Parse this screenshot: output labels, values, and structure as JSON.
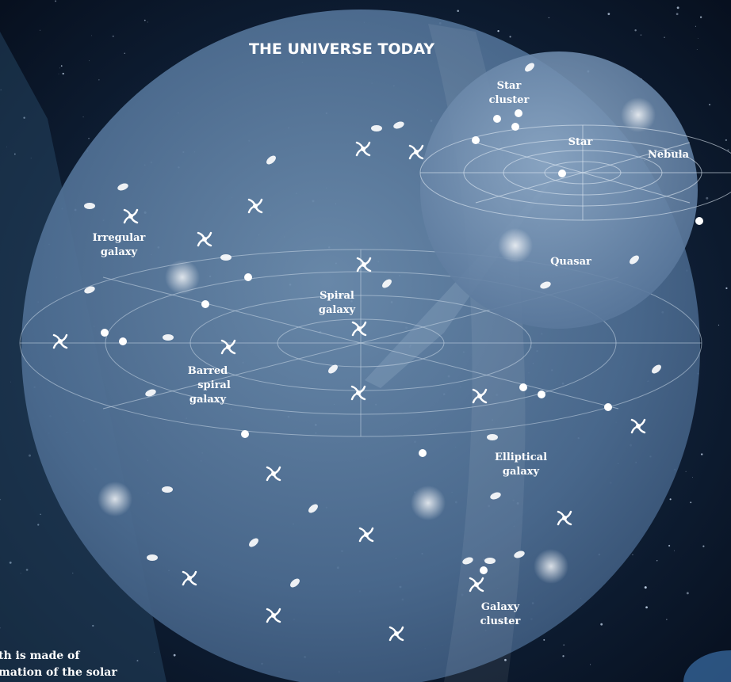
{
  "title": "THE UNIVERSE TODAY",
  "labels": [
    {
      "lines": [
        "Star",
        "cluster"
      ]
    },
    {
      "lines": [
        "Star"
      ]
    },
    {
      "lines": [
        "Nebula"
      ]
    },
    {
      "lines": [
        "Irregular",
        "galaxy"
      ]
    },
    {
      "lines": [
        "Quasar"
      ]
    },
    {
      "lines": [
        "Spiral",
        "galaxy"
      ]
    },
    {
      "lines": [
        "Barred",
        "spiral",
        "galaxy"
      ]
    },
    {
      "lines": [
        "Elliptical",
        "galaxy"
      ]
    },
    {
      "lines": [
        "Galaxy",
        "cluster"
      ]
    }
  ],
  "caption": {
    "lines": [
      "th is made of",
      "mation of the solar"
    ]
  }
}
